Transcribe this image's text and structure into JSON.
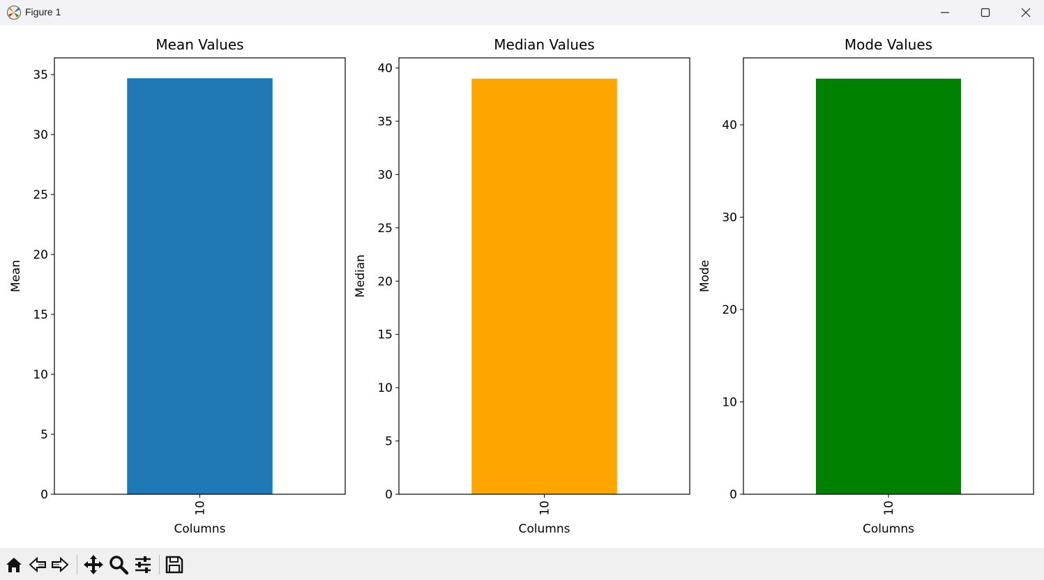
{
  "window": {
    "title": "Figure 1"
  },
  "icons": {
    "app": "matplotlib-figure-icon",
    "minimize": "minimize-icon",
    "maximize": "maximize-icon",
    "close": "close-icon"
  },
  "toolbar": {
    "tools": [
      "home-icon",
      "back-icon",
      "forward-icon",
      "pan-icon",
      "zoom-icon",
      "configure-subplots-icon",
      "save-icon"
    ]
  },
  "chart_data": [
    {
      "type": "bar",
      "title": "Mean Values",
      "xlabel": "Columns",
      "ylabel": "Mean",
      "categories": [
        "10"
      ],
      "values": [
        34.7
      ],
      "ylim": [
        0,
        36.4
      ],
      "yticks": [
        0,
        5,
        10,
        15,
        20,
        25,
        30,
        35
      ],
      "color": "#1f77b4",
      "grid": false
    },
    {
      "type": "bar",
      "title": "Median Values",
      "xlabel": "Columns",
      "ylabel": "Median",
      "categories": [
        "10"
      ],
      "values": [
        39.0
      ],
      "ylim": [
        0,
        40.95
      ],
      "yticks": [
        0,
        5,
        10,
        15,
        20,
        25,
        30,
        35,
        40
      ],
      "color": "#ffa500",
      "grid": false
    },
    {
      "type": "bar",
      "title": "Mode Values",
      "xlabel": "Columns",
      "ylabel": "Mode",
      "categories": [
        "10"
      ],
      "values": [
        45
      ],
      "ylim": [
        0,
        47.25
      ],
      "yticks": [
        0,
        10,
        20,
        30,
        40
      ],
      "color": "#008000",
      "grid": false
    }
  ]
}
